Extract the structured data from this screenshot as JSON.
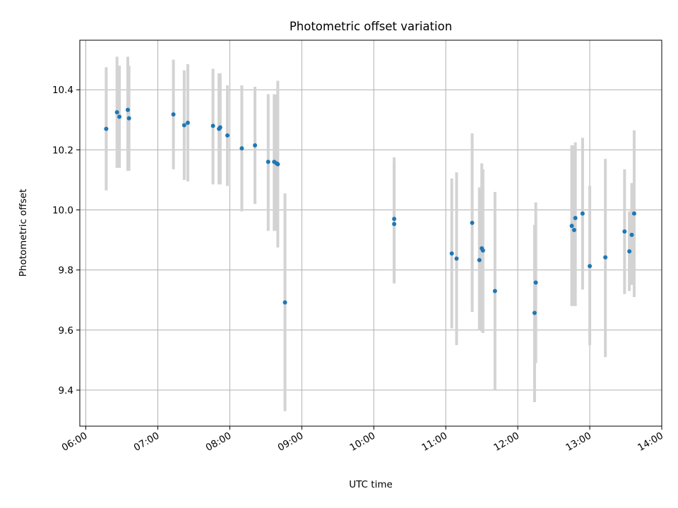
{
  "chart_data": {
    "type": "scatter",
    "title": "Photometric offset variation",
    "xlabel": "UTC time",
    "ylabel": "Photometric offset",
    "xlim": [
      "05:55",
      "14:00"
    ],
    "ylim": [
      9.28,
      10.565
    ],
    "x_ticks": [
      "06:00",
      "07:00",
      "08:00",
      "09:00",
      "10:00",
      "11:00",
      "12:00",
      "13:00",
      "14:00"
    ],
    "y_ticks": [
      9.4,
      9.6,
      9.8,
      10.0,
      10.2,
      10.4
    ],
    "y_tick_labels": [
      "9.4",
      "9.6",
      "9.8",
      "10.0",
      "10.2",
      "10.4"
    ],
    "grid": true,
    "colors": {
      "point": "#1f77b4",
      "errorbar": "#d3d3d3",
      "grid": "#b0b0b0"
    },
    "series": [
      {
        "x": [
          "06:17",
          "06:26",
          "06:28",
          "06:35",
          "06:36",
          "07:13",
          "07:22",
          "07:25",
          "07:46",
          "07:51",
          "07:52",
          "07:58",
          "08:10",
          "08:21",
          "08:32",
          "08:37",
          "08:39",
          "08:40",
          "08:46",
          "10:17",
          "10:17",
          "11:05",
          "11:09",
          "11:22",
          "11:28",
          "11:30",
          "11:31",
          "11:41",
          "12:14",
          "12:15",
          "12:45",
          "12:47",
          "12:48",
          "12:54",
          "13:00",
          "13:13",
          "13:29",
          "13:33",
          "13:35",
          "13:37"
        ],
        "y": [
          10.27,
          10.325,
          10.31,
          10.333,
          10.305,
          10.318,
          10.282,
          10.29,
          10.28,
          10.27,
          10.275,
          10.248,
          10.205,
          10.215,
          10.16,
          10.16,
          10.155,
          10.152,
          9.692,
          9.97,
          9.953,
          9.855,
          9.838,
          9.957,
          9.833,
          9.872,
          9.865,
          9.73,
          9.657,
          9.758,
          9.947,
          9.933,
          9.973,
          9.988,
          9.813,
          9.842,
          9.928,
          9.862,
          9.917,
          9.988
        ],
        "yerr_low": [
          10.065,
          10.14,
          10.14,
          10.13,
          10.13,
          10.135,
          10.1,
          10.095,
          10.085,
          10.085,
          10.085,
          10.08,
          9.995,
          10.02,
          9.93,
          9.93,
          9.93,
          9.875,
          9.33,
          9.76,
          9.755,
          9.605,
          9.55,
          9.66,
          9.6,
          9.595,
          9.59,
          9.4,
          9.36,
          9.49,
          9.68,
          9.68,
          9.68,
          9.735,
          9.55,
          9.51,
          9.72,
          9.73,
          9.75,
          9.71
        ],
        "yerr_high": [
          10.475,
          10.51,
          10.48,
          10.51,
          10.48,
          10.5,
          10.465,
          10.485,
          10.47,
          10.455,
          10.455,
          10.415,
          10.415,
          10.41,
          10.385,
          10.385,
          10.385,
          10.43,
          10.055,
          10.175,
          10.15,
          10.105,
          10.125,
          10.255,
          10.075,
          10.155,
          10.135,
          10.06,
          9.95,
          10.025,
          10.215,
          10.215,
          10.225,
          10.24,
          10.08,
          10.17,
          10.135,
          9.995,
          10.09,
          10.265
        ]
      }
    ]
  }
}
